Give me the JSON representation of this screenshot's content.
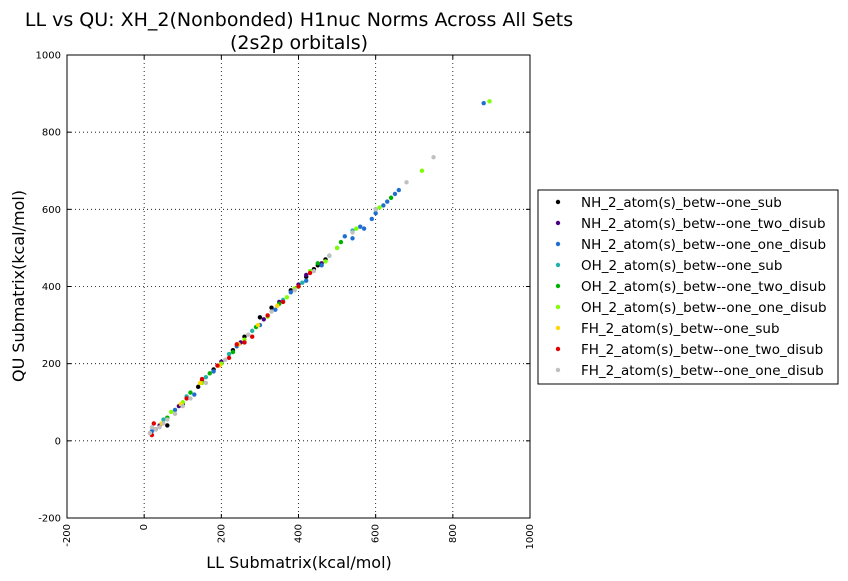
{
  "chart_data": {
    "type": "scatter",
    "title": "LL vs QU: XH_2(Nonbonded) H1nuc Norms Across All Sets",
    "subtitle": "(2s2p orbitals)",
    "xlabel": "LL Submatrix(kcal/mol)",
    "ylabel": "QU Submatrix(kcal/mol)",
    "xlim": [
      -200,
      1000
    ],
    "ylim": [
      -200,
      1000
    ],
    "xticks": [
      -200,
      0,
      200,
      400,
      600,
      800,
      1000
    ],
    "yticks": [
      -200,
      0,
      200,
      400,
      600,
      800,
      1000
    ],
    "xtick_labels": [
      "-200",
      "0",
      "200",
      "400",
      "600",
      "800",
      "1000"
    ],
    "ytick_labels": [
      "-200",
      "0",
      "200",
      "400",
      "600",
      "800",
      "1000"
    ],
    "grid": true,
    "legend_position": "outside-right",
    "series": [
      {
        "name": "NH_2_atom(s)_betw--one_sub",
        "color": "#000000",
        "points": [
          [
            30,
            30
          ],
          [
            60,
            40
          ],
          [
            100,
            95
          ],
          [
            140,
            140
          ],
          [
            180,
            185
          ],
          [
            230,
            235
          ],
          [
            260,
            270
          ],
          [
            300,
            320
          ],
          [
            330,
            345
          ],
          [
            380,
            390
          ],
          [
            420,
            425
          ],
          [
            440,
            445
          ],
          [
            450,
            455
          ],
          [
            470,
            470
          ]
        ]
      },
      {
        "name": "NH_2_atom(s)_betw--one_two_disub",
        "color": "#4b0082",
        "points": [
          [
            40,
            40
          ],
          [
            90,
            90
          ],
          [
            150,
            155
          ],
          [
            200,
            205
          ],
          [
            250,
            255
          ],
          [
            310,
            315
          ],
          [
            350,
            360
          ],
          [
            400,
            405
          ],
          [
            420,
            430
          ],
          [
            460,
            460
          ]
        ]
      },
      {
        "name": "NH_2_atom(s)_betw--one_one_disub",
        "color": "#1f6fd0",
        "points": [
          [
            20,
            25
          ],
          [
            80,
            80
          ],
          [
            130,
            120
          ],
          [
            180,
            180
          ],
          [
            240,
            245
          ],
          [
            300,
            300
          ],
          [
            340,
            340
          ],
          [
            380,
            385
          ],
          [
            420,
            415
          ],
          [
            460,
            455
          ],
          [
            500,
            500
          ],
          [
            520,
            530
          ],
          [
            540,
            525
          ],
          [
            560,
            555
          ],
          [
            570,
            550
          ],
          [
            590,
            575
          ],
          [
            600,
            590
          ],
          [
            620,
            610
          ],
          [
            630,
            620
          ],
          [
            650,
            640
          ],
          [
            660,
            650
          ],
          [
            880,
            875
          ]
        ]
      },
      {
        "name": "OH_2_atom(s)_betw--one_sub",
        "color": "#20b2aa",
        "points": [
          [
            50,
            55
          ],
          [
            110,
            115
          ],
          [
            160,
            165
          ],
          [
            220,
            225
          ],
          [
            280,
            285
          ],
          [
            360,
            365
          ],
          [
            410,
            410
          ],
          [
            480,
            480
          ],
          [
            540,
            545
          ]
        ]
      },
      {
        "name": "OH_2_atom(s)_betw--one_two_disub",
        "color": "#00b000",
        "points": [
          [
            60,
            60
          ],
          [
            120,
            125
          ],
          [
            170,
            175
          ],
          [
            230,
            230
          ],
          [
            290,
            295
          ],
          [
            350,
            355
          ],
          [
            400,
            400
          ],
          [
            450,
            460
          ],
          [
            510,
            515
          ],
          [
            600,
            600
          ],
          [
            640,
            630
          ]
        ]
      },
      {
        "name": "OH_2_atom(s)_betw--one_one_disub",
        "color": "#7fff00",
        "points": [
          [
            70,
            75
          ],
          [
            100,
            100
          ],
          [
            150,
            150
          ],
          [
            200,
            200
          ],
          [
            260,
            262
          ],
          [
            320,
            322
          ],
          [
            370,
            372
          ],
          [
            390,
            395
          ],
          [
            430,
            440
          ],
          [
            470,
            465
          ],
          [
            500,
            500
          ],
          [
            550,
            550
          ],
          [
            610,
            605
          ],
          [
            720,
            700
          ],
          [
            895,
            880
          ]
        ]
      },
      {
        "name": "FH_2_atom(s)_betw--one_sub",
        "color": "#ffd700",
        "points": [
          [
            45,
            45
          ],
          [
            95,
            95
          ],
          [
            145,
            150
          ],
          [
            195,
            195
          ],
          [
            245,
            250
          ],
          [
            295,
            300
          ],
          [
            345,
            350
          ]
        ]
      },
      {
        "name": "FH_2_atom(s)_betw--one_two_disub",
        "color": "#e00000",
        "points": [
          [
            20,
            15
          ],
          [
            25,
            45
          ],
          [
            110,
            110
          ],
          [
            150,
            160
          ],
          [
            190,
            195
          ],
          [
            220,
            215
          ],
          [
            240,
            250
          ],
          [
            260,
            255
          ],
          [
            280,
            270
          ],
          [
            320,
            325
          ],
          [
            360,
            360
          ],
          [
            400,
            400
          ],
          [
            430,
            435
          ]
        ]
      },
      {
        "name": "FH_2_atom(s)_betw--one_one_disub",
        "color": "#c0c0c0",
        "points": [
          [
            15,
            20
          ],
          [
            20,
            35
          ],
          [
            30,
            30
          ],
          [
            40,
            35
          ],
          [
            50,
            45
          ],
          [
            60,
            55
          ],
          [
            80,
            70
          ],
          [
            100,
            90
          ],
          [
            120,
            110
          ],
          [
            160,
            150
          ],
          [
            210,
            210
          ],
          [
            270,
            275
          ],
          [
            330,
            335
          ],
          [
            390,
            390
          ],
          [
            440,
            440
          ],
          [
            480,
            480
          ],
          [
            540,
            540
          ],
          [
            600,
            600
          ],
          [
            680,
            670
          ],
          [
            750,
            735
          ]
        ]
      }
    ]
  }
}
